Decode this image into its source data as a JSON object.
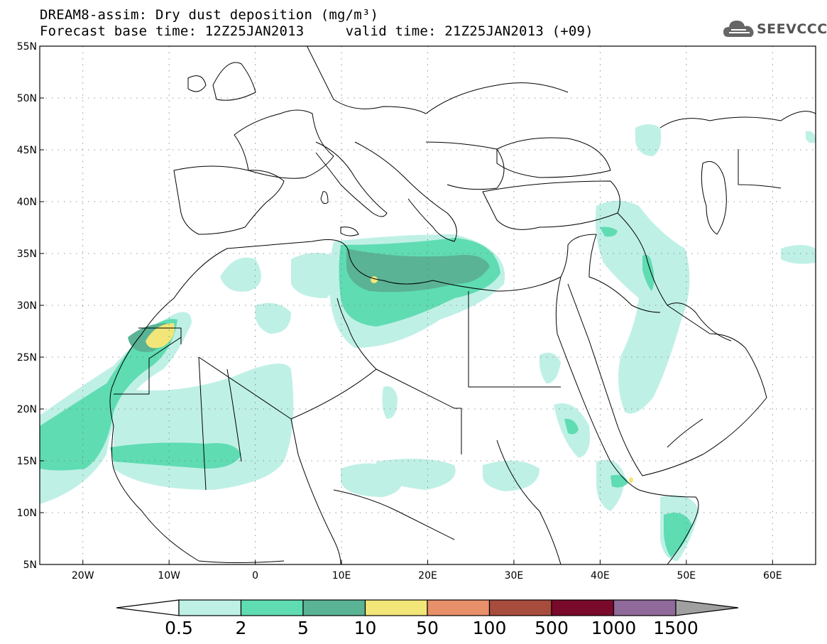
{
  "header": {
    "line1": "DREAM8-assim: Dry dust deposition (mg/m³)",
    "line2": "Forecast base time: 12Z25JAN2013     valid time: 21Z25JAN2013 (+09)"
  },
  "logo": {
    "text": "SEEVCCC",
    "icon": "cloud-icon"
  },
  "map": {
    "lon_range": [
      -25,
      65
    ],
    "lat_range": [
      5,
      55
    ],
    "lon_ticks": [
      {
        "v": -20,
        "label": "20W"
      },
      {
        "v": -10,
        "label": "10W"
      },
      {
        "v": 0,
        "label": "0"
      },
      {
        "v": 10,
        "label": "10E"
      },
      {
        "v": 20,
        "label": "20E"
      },
      {
        "v": 30,
        "label": "30E"
      },
      {
        "v": 40,
        "label": "40E"
      },
      {
        "v": 50,
        "label": "50E"
      },
      {
        "v": 60,
        "label": "60E"
      }
    ],
    "lat_ticks": [
      {
        "v": 5,
        "label": "5N"
      },
      {
        "v": 10,
        "label": "10N"
      },
      {
        "v": 15,
        "label": "15N"
      },
      {
        "v": 20,
        "label": "20N"
      },
      {
        "v": 25,
        "label": "25N"
      },
      {
        "v": 30,
        "label": "30N"
      },
      {
        "v": 35,
        "label": "35N"
      },
      {
        "v": 40,
        "label": "40N"
      },
      {
        "v": 45,
        "label": "45N"
      },
      {
        "v": 50,
        "label": "50N"
      },
      {
        "v": 55,
        "label": "55N"
      }
    ],
    "grid": true
  },
  "colorbar": {
    "colors": [
      "#bff0e6",
      "#5fdcb2",
      "#5ab394",
      "#f2e678",
      "#e8906a",
      "#a84c3e",
      "#7a0a2c",
      "#8f6a9a"
    ],
    "labels": [
      "0.5",
      "2",
      "5",
      "10",
      "50",
      "100",
      "500",
      "1000",
      "1500"
    ],
    "under_color": "#ffffff",
    "over_color": "#a0a0a0"
  }
}
